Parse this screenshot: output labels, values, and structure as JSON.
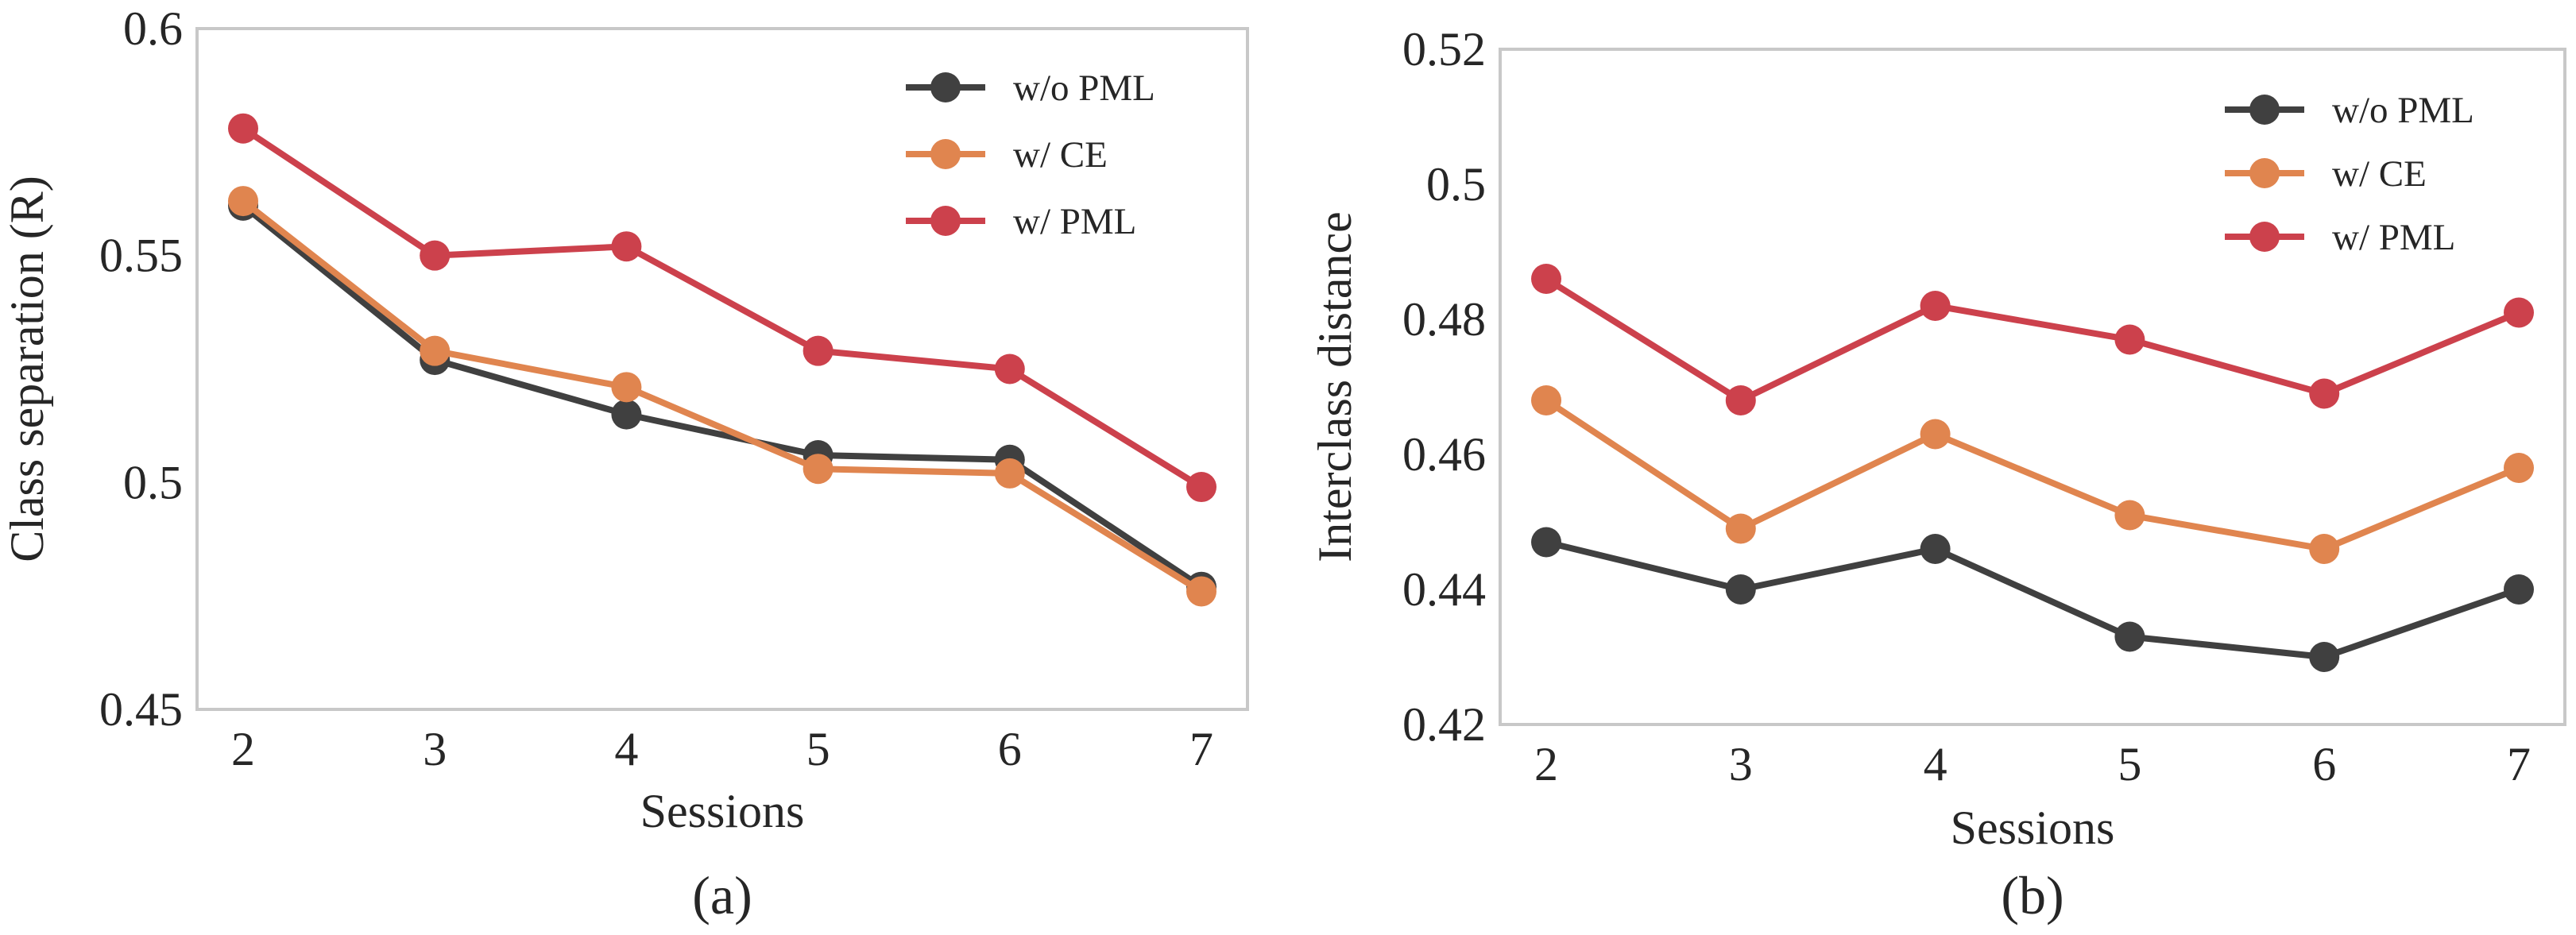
{
  "colors": {
    "w/o PML": "#404040",
    "w/ CE": "#e0854f",
    "w/ PML": "#cc414c",
    "frame": "#c8c8c8",
    "text": "#262626"
  },
  "chart_data": [
    {
      "type": "line",
      "panel": "(a)",
      "title": "",
      "xlabel": "Sessions",
      "ylabel": "Class separation (R)",
      "x": [
        2,
        3,
        4,
        5,
        6,
        7
      ],
      "ylim": [
        0.45,
        0.6
      ],
      "yticks": [
        0.45,
        0.5,
        0.55,
        0.6
      ],
      "ytick_labels": [
        "0.45",
        "0.5",
        "0.55",
        "0.6"
      ],
      "xtick_labels": [
        "2",
        "3",
        "4",
        "5",
        "6",
        "7"
      ],
      "grid": false,
      "legend_position": "top-right",
      "series": [
        {
          "name": "w/o PML",
          "values": [
            0.561,
            0.527,
            0.515,
            0.506,
            0.505,
            0.477
          ]
        },
        {
          "name": "w/ CE",
          "values": [
            0.562,
            0.529,
            0.521,
            0.503,
            0.502,
            0.476
          ]
        },
        {
          "name": "w/ PML",
          "values": [
            0.578,
            0.55,
            0.552,
            0.529,
            0.525,
            0.499
          ]
        }
      ]
    },
    {
      "type": "line",
      "panel": "(b)",
      "title": "",
      "xlabel": "Sessions",
      "ylabel": "Interclass distance",
      "x": [
        2,
        3,
        4,
        5,
        6,
        7
      ],
      "ylim": [
        0.42,
        0.52
      ],
      "yticks": [
        0.42,
        0.44,
        0.46,
        0.48,
        0.5,
        0.52
      ],
      "ytick_labels": [
        "0.42",
        "0.44",
        "0.46",
        "0.48",
        "0.5",
        "0.52"
      ],
      "xtick_labels": [
        "2",
        "3",
        "4",
        "5",
        "6",
        "7"
      ],
      "grid": false,
      "legend_position": "top-right",
      "series": [
        {
          "name": "w/o PML",
          "values": [
            0.447,
            0.44,
            0.446,
            0.433,
            0.43,
            0.44
          ]
        },
        {
          "name": "w/ CE",
          "values": [
            0.468,
            0.449,
            0.463,
            0.451,
            0.446,
            0.458
          ]
        },
        {
          "name": "w/ PML",
          "values": [
            0.486,
            0.468,
            0.482,
            0.477,
            0.469,
            0.481
          ]
        }
      ]
    }
  ]
}
